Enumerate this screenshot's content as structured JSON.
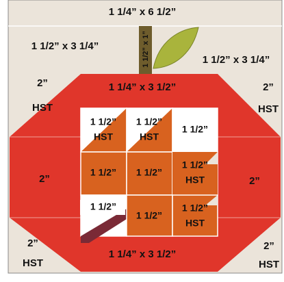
{
  "top_strip": "1 1/4” x 6 1/2”",
  "left_sky": "1 1/2” x 3 1/4”",
  "stem": "1 1/2” x 1”",
  "right_sky": "1 1/2” x 3 1/4”",
  "apple_top": "1 1/4” x 3 1/2”",
  "apple_bottom": "1 1/4” x 3 1/2”",
  "left_top": [
    "2”",
    "HST"
  ],
  "left_middle": "2”",
  "left_bottom": [
    "2”",
    "HST"
  ],
  "right_top": [
    "2”",
    "HST"
  ],
  "right_middle": "2”",
  "right_bottom": [
    "2”",
    "HST"
  ],
  "grid": [
    [
      [
        "1 1/2”",
        "HST"
      ],
      [
        "1 1/2”",
        "HST"
      ],
      [
        "1 1/2”"
      ]
    ],
    [
      [
        "1 1/2”"
      ],
      [
        "1 1/2”"
      ],
      [
        "1 1/2”",
        "HST"
      ]
    ],
    [
      [
        "1 1/2”"
      ],
      [
        "1 1/2”"
      ],
      [
        "1 1/2”",
        "HST"
      ]
    ]
  ]
}
